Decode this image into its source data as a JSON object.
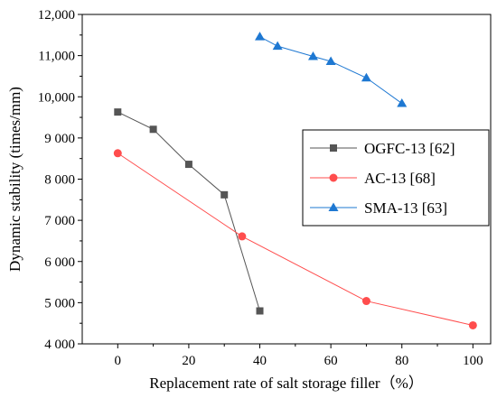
{
  "chart_data": {
    "type": "line",
    "xlabel": "Replacement rate of salt storage filler（%）",
    "ylabel": "Dynamic stability (times/mm)",
    "xlim": [
      -10,
      105
    ],
    "ylim": [
      4000,
      12000
    ],
    "x_ticks": [
      0,
      20,
      40,
      60,
      80,
      100
    ],
    "x_tick_labels": [
      "0",
      "20",
      "40",
      "60",
      "80",
      "100"
    ],
    "y_ticks": [
      4000,
      5000,
      6000,
      7000,
      8000,
      9000,
      10000,
      11000,
      12000
    ],
    "y_tick_labels": [
      "4 000",
      "5 000",
      "6 000",
      "7 000",
      "8 000",
      "9 000",
      "10,000",
      "11,000",
      "12,000"
    ],
    "grid": false,
    "legend_position": "right",
    "series": [
      {
        "name": "OGFC-13 [62]",
        "color": "#555555",
        "marker": "square",
        "x": [
          0,
          10,
          20,
          30,
          40
        ],
        "y": [
          9630,
          9210,
          8360,
          7620,
          4800
        ]
      },
      {
        "name": "AC-13 [68]",
        "color": "#ff4d4d",
        "marker": "circle",
        "x": [
          0,
          35,
          70,
          100
        ],
        "y": [
          8630,
          6610,
          5040,
          4450
        ]
      },
      {
        "name": "SMA-13 [63]",
        "color": "#1e78d2",
        "marker": "triangle",
        "x": [
          40,
          45,
          55,
          60,
          70,
          80
        ],
        "y": [
          11460,
          11230,
          10980,
          10860,
          10460,
          9840
        ]
      }
    ]
  }
}
